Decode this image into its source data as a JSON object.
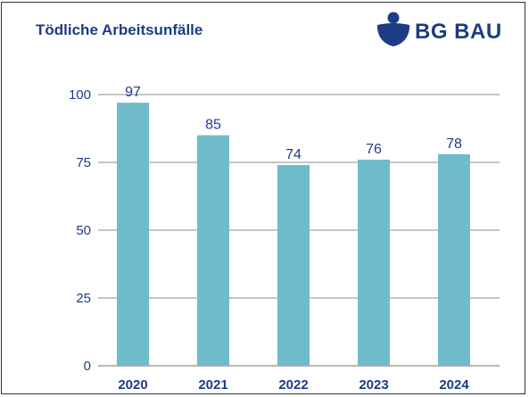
{
  "header": {
    "title": "Tödliche Arbeitsunfälle"
  },
  "logo": {
    "text": "BG BAU",
    "icon": "bg-bau-emblem"
  },
  "colors": {
    "bar": "#6ebcc9",
    "text": "#1d3c85",
    "grid": "#8c8c8c"
  },
  "chart_data": {
    "type": "bar",
    "title": "Tödliche Arbeitsunfälle",
    "categories": [
      "2020",
      "2021",
      "2022",
      "2023",
      "2024"
    ],
    "values": [
      97,
      85,
      74,
      76,
      78
    ],
    "data_labels": [
      "97",
      "85",
      "74",
      "76",
      "78"
    ],
    "y_ticks": [
      0,
      25,
      50,
      75,
      100
    ],
    "ylim": [
      0,
      100
    ],
    "grid": true,
    "legend": "none"
  }
}
